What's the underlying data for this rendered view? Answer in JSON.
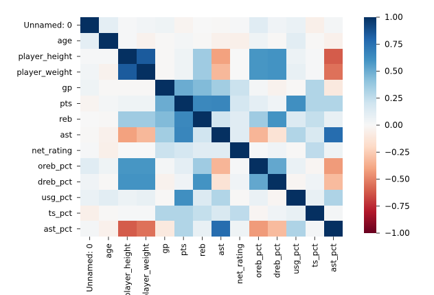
{
  "chart_data": {
    "type": "heatmap",
    "title": "",
    "xlabel": "",
    "ylabel": "",
    "variables": [
      "Unnamed: 0",
      "age",
      "player_height",
      "player_weight",
      "gp",
      "pts",
      "reb",
      "ast",
      "net_rating",
      "oreb_pct",
      "dreb_pct",
      "usg_pct",
      "ts_pct",
      "ast_pct"
    ],
    "matrix": [
      [
        1.0,
        0.1,
        0.01,
        0.03,
        0.05,
        -0.03,
        0.0,
        -0.01,
        0.01,
        0.12,
        0.04,
        0.07,
        -0.06,
        0.02
      ],
      [
        0.1,
        1.0,
        0.01,
        -0.04,
        -0.01,
        0.02,
        -0.01,
        -0.05,
        -0.06,
        0.05,
        -0.01,
        0.11,
        -0.01,
        -0.05
      ],
      [
        0.01,
        0.01,
        1.0,
        0.84,
        -0.01,
        0.05,
        0.36,
        -0.41,
        0.0,
        0.59,
        0.6,
        0.06,
        0.01,
        -0.61
      ],
      [
        0.03,
        -0.04,
        0.84,
        1.0,
        -0.01,
        0.05,
        0.36,
        -0.33,
        0.0,
        0.59,
        0.6,
        0.08,
        0.01,
        -0.55
      ],
      [
        0.05,
        -0.01,
        -0.01,
        -0.01,
        1.0,
        0.5,
        0.44,
        0.35,
        0.22,
        0.02,
        -0.04,
        -0.01,
        0.3,
        -0.1
      ],
      [
        -0.03,
        0.02,
        0.05,
        0.05,
        0.5,
        1.0,
        0.65,
        0.66,
        0.18,
        0.1,
        0.04,
        0.62,
        0.3,
        0.3
      ],
      [
        0.0,
        -0.01,
        0.36,
        0.36,
        0.44,
        0.65,
        1.0,
        0.2,
        0.12,
        0.36,
        0.6,
        0.14,
        0.24,
        0.08
      ],
      [
        -0.01,
        -0.05,
        -0.41,
        -0.33,
        0.35,
        0.66,
        0.2,
        1.0,
        0.12,
        -0.34,
        -0.14,
        0.3,
        0.16,
        0.77
      ],
      [
        0.01,
        -0.06,
        0.0,
        0.0,
        0.22,
        0.18,
        0.12,
        0.12,
        1.0,
        0.01,
        0.04,
        -0.01,
        0.26,
        0.05
      ],
      [
        0.12,
        0.05,
        0.59,
        0.59,
        0.02,
        0.1,
        0.36,
        -0.34,
        0.01,
        1.0,
        0.52,
        0.07,
        -0.02,
        -0.43
      ],
      [
        0.04,
        -0.01,
        0.6,
        0.6,
        -0.04,
        0.04,
        0.6,
        -0.14,
        0.04,
        0.52,
        1.0,
        -0.02,
        0.04,
        -0.32
      ],
      [
        0.07,
        0.11,
        0.06,
        0.08,
        -0.01,
        0.62,
        0.14,
        0.3,
        -0.01,
        0.07,
        -0.02,
        1.0,
        0.08,
        0.31
      ],
      [
        -0.06,
        -0.01,
        0.01,
        0.01,
        0.3,
        0.3,
        0.24,
        0.16,
        0.26,
        -0.02,
        0.04,
        0.08,
        1.0,
        0.02
      ],
      [
        0.02,
        -0.05,
        -0.61,
        -0.55,
        -0.1,
        0.3,
        0.08,
        0.77,
        0.05,
        -0.43,
        -0.32,
        0.31,
        0.02,
        1.0
      ]
    ],
    "colorbar": {
      "range": [
        -1,
        1
      ],
      "ticks": [
        "1.00",
        "0.75",
        "0.50",
        "0.25",
        "0.00",
        "−0.25",
        "−0.50",
        "−0.75",
        "−1.00"
      ],
      "tick_values": [
        1.0,
        0.75,
        0.5,
        0.25,
        0.0,
        -0.25,
        -0.5,
        -0.75,
        -1.0
      ],
      "colormap": "RdBu"
    }
  }
}
